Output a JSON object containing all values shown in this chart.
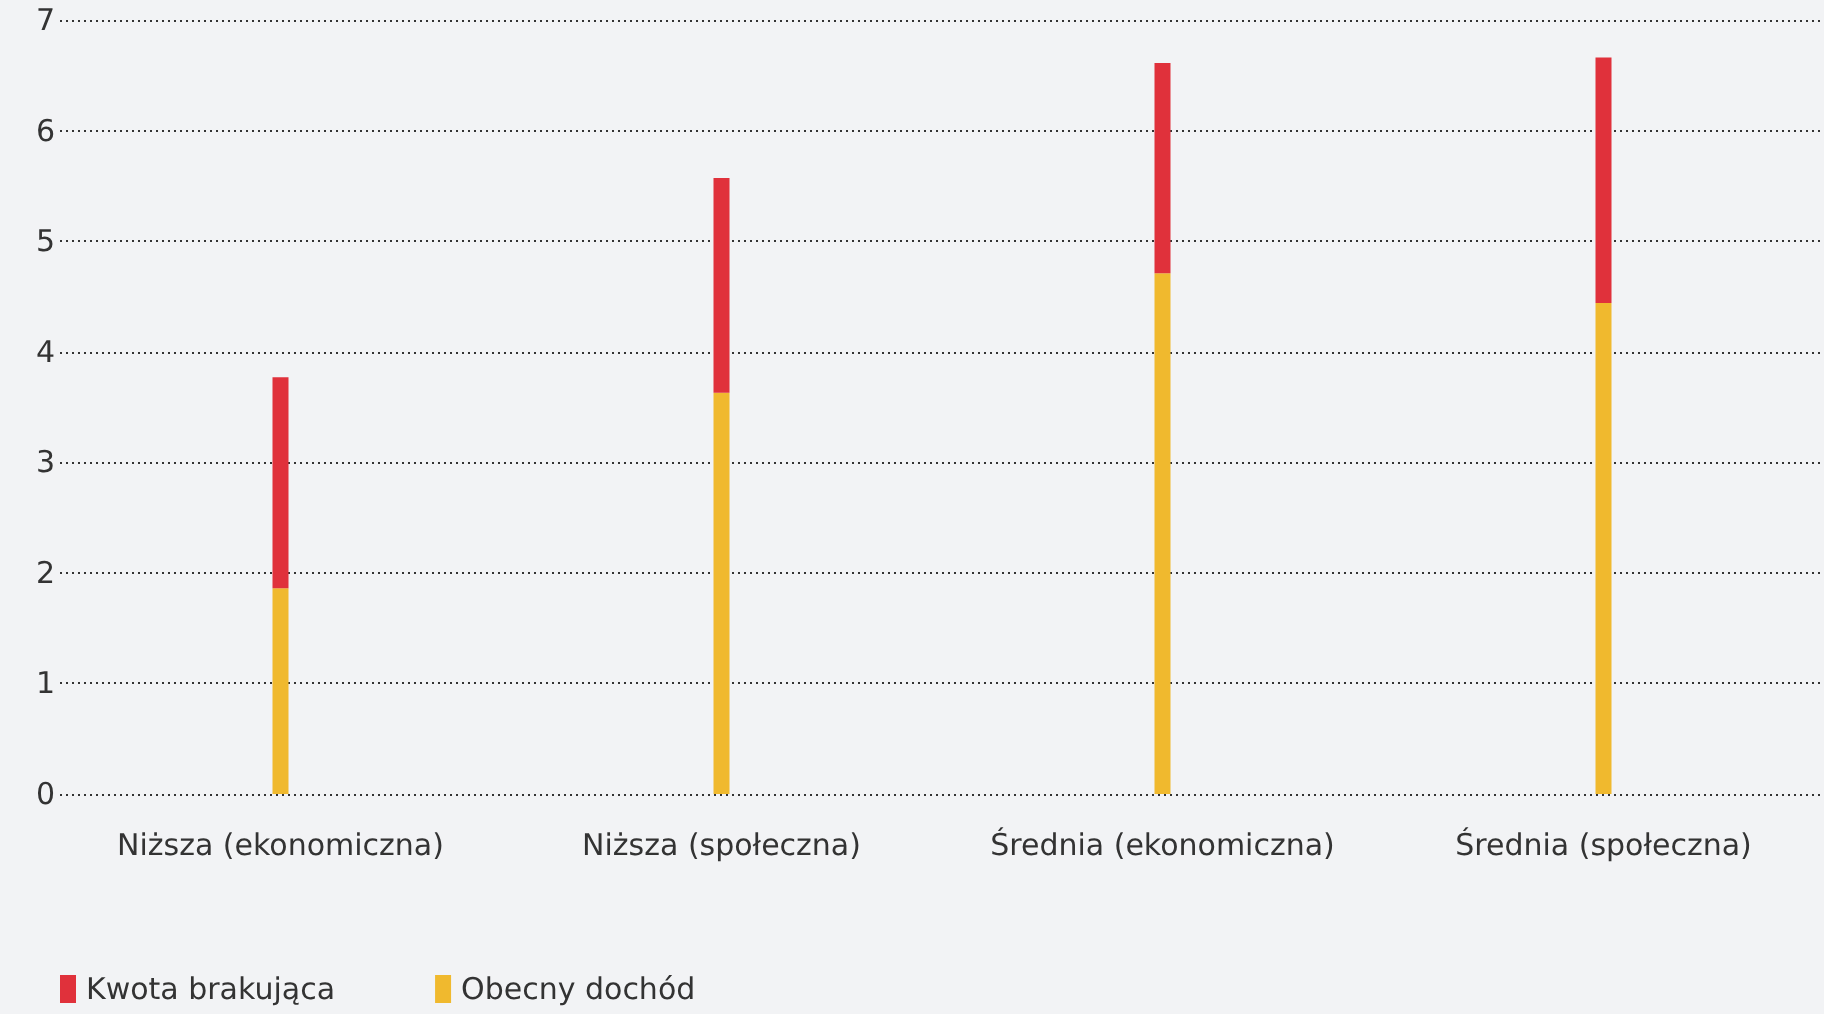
{
  "chart_data": {
    "type": "bar",
    "stacked": true,
    "categories": [
      "Niższa (ekonomiczna)",
      "Niższa (społeczna)",
      "Średnia (ekonomiczna)",
      "Średnia (społeczna)"
    ],
    "series": [
      {
        "name": "Obecny dochód",
        "color": "#f0b92e",
        "values": [
          1.86,
          3.63,
          4.71,
          4.44
        ]
      },
      {
        "name": "Kwota brakująca",
        "color": "#e0313b",
        "values": [
          1.91,
          1.94,
          1.9,
          2.22
        ]
      }
    ],
    "ylim": [
      0,
      7
    ],
    "yticks": [
      0,
      1,
      2,
      3,
      4,
      5,
      6,
      7
    ],
    "grid": "y",
    "legend": "bottom left"
  }
}
